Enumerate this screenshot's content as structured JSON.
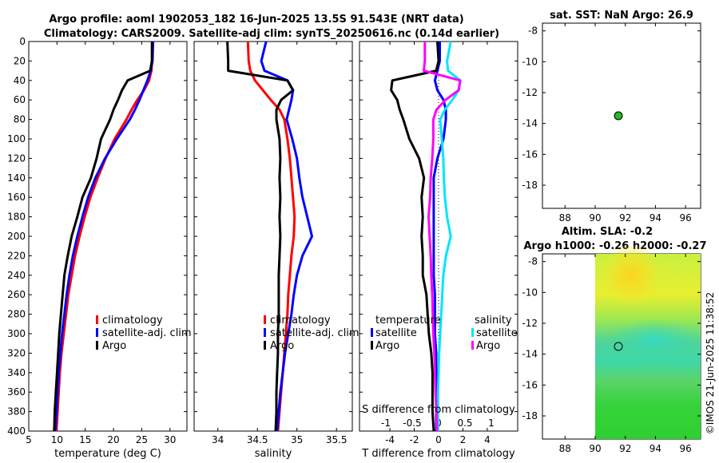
{
  "header": {
    "title_line1": "Argo profile: aoml 1902053_182 16-Jun-2025 13.5S 91.543E (NRT data)",
    "title_line2": "Climatology: CARS2009. Satellite-adj clim: synTS_20250616.nc (0.14d earlier)"
  },
  "colors": {
    "climatology": "#ff0000",
    "satellite": "#0000ff",
    "argo": "#000000",
    "sat_salinity": "#00e5ff",
    "argo_salinity": "#ff00ff",
    "float_marker": "#22bb22"
  },
  "stamp": "©IMOS 21-Jun-2025 11:38:52",
  "chart_data": [
    {
      "id": "temperature",
      "type": "line",
      "xlabel": "temperature (deg C)",
      "ylabel": "",
      "xlim": [
        5,
        33
      ],
      "ylim": [
        400,
        0
      ],
      "x_ticks": [
        5,
        10,
        15,
        20,
        25,
        30
      ],
      "y_ticks": [
        0,
        20,
        40,
        60,
        80,
        100,
        120,
        140,
        160,
        180,
        200,
        220,
        240,
        260,
        280,
        300,
        320,
        340,
        360,
        380,
        400
      ],
      "legend": [
        "climatology",
        "satellite-adj. clim",
        "Argo"
      ],
      "depth": [
        0,
        20,
        30,
        40,
        50,
        60,
        70,
        80,
        100,
        120,
        140,
        160,
        180,
        200,
        220,
        240,
        260,
        280,
        300,
        320,
        340,
        360,
        380,
        400
      ],
      "series": [
        {
          "name": "climatology",
          "values": [
            26.9,
            26.8,
            26.7,
            26.3,
            25.4,
            24.2,
            23.2,
            22.3,
            20.2,
            18.6,
            17.2,
            15.9,
            14.9,
            14.0,
            13.2,
            12.6,
            12.0,
            11.6,
            11.2,
            10.8,
            10.5,
            10.3,
            10.1,
            9.9
          ]
        },
        {
          "name": "satellite-adj. clim",
          "values": [
            27.0,
            26.9,
            26.6,
            26.0,
            25.3,
            24.6,
            23.8,
            22.9,
            20.6,
            18.5,
            16.8,
            15.5,
            14.5,
            13.6,
            12.8,
            12.2,
            11.7,
            11.3,
            10.9,
            10.6,
            10.3,
            10.1,
            9.9,
            9.7
          ]
        },
        {
          "name": "Argo",
          "values": [
            26.8,
            26.8,
            26.5,
            22.5,
            21.5,
            20.8,
            20.0,
            19.4,
            17.8,
            17.0,
            16.0,
            14.5,
            13.6,
            12.6,
            11.9,
            11.3,
            11.0,
            10.7,
            10.4,
            10.2,
            10.0,
            9.8,
            9.6,
            9.5
          ]
        }
      ]
    },
    {
      "id": "salinity",
      "type": "line",
      "xlabel": "salinity",
      "ylabel": "",
      "xlim": [
        33.7,
        35.7
      ],
      "ylim": [
        400,
        0
      ],
      "x_ticks": [
        34,
        34.5,
        35,
        35.5
      ],
      "legend": [
        "climatology",
        "satellite-adj. clim",
        "Argo"
      ],
      "depth": [
        0,
        20,
        30,
        40,
        50,
        60,
        70,
        80,
        100,
        120,
        140,
        160,
        180,
        200,
        220,
        240,
        260,
        280,
        300,
        320,
        340,
        360,
        380,
        400
      ],
      "series": [
        {
          "name": "climatology",
          "values": [
            34.38,
            34.39,
            34.41,
            34.47,
            34.57,
            34.67,
            34.78,
            34.84,
            34.88,
            34.91,
            34.93,
            34.95,
            34.97,
            34.96,
            34.93,
            34.91,
            34.89,
            34.88,
            34.86,
            34.84,
            34.82,
            34.8,
            34.78,
            34.76
          ]
        },
        {
          "name": "satellite-adj. clim",
          "values": [
            34.61,
            34.55,
            34.59,
            34.88,
            34.95,
            34.93,
            34.9,
            34.87,
            34.94,
            35.0,
            35.03,
            35.07,
            35.13,
            35.19,
            35.07,
            35.0,
            34.96,
            34.93,
            34.89,
            34.85,
            34.82,
            34.79,
            34.77,
            34.75
          ]
        },
        {
          "name": "Argo",
          "values": [
            34.12,
            34.13,
            34.13,
            34.88,
            34.95,
            34.8,
            34.74,
            34.74,
            34.78,
            34.79,
            34.78,
            34.79,
            34.78,
            34.79,
            34.78,
            34.77,
            34.77,
            34.77,
            34.76,
            34.76,
            34.75,
            34.74,
            34.74,
            34.73
          ]
        }
      ]
    },
    {
      "id": "differences",
      "type": "line",
      "xlabel": "T difference from climatology",
      "xlabel_top": "S difference from climatology",
      "xlim": [
        -6.5,
        6.5
      ],
      "ylim": [
        400,
        0
      ],
      "x_ticks": [
        -4,
        -2,
        0,
        2,
        4
      ],
      "s_ticks": [
        -1,
        -0.5,
        0,
        0.5,
        1
      ],
      "legend_titles": [
        "temperature",
        "salinity"
      ],
      "legend": [
        "satellite",
        "Argo",
        "satellite",
        "Argo"
      ],
      "depth": [
        0,
        20,
        30,
        40,
        50,
        60,
        70,
        80,
        100,
        120,
        140,
        160,
        180,
        200,
        220,
        240,
        260,
        280,
        300,
        320,
        340,
        360,
        380,
        400
      ],
      "series": [
        {
          "name": "temperature satellite",
          "values": [
            0.1,
            0.1,
            -0.1,
            -0.3,
            -0.1,
            0.4,
            0.6,
            0.6,
            0.4,
            -0.1,
            -0.4,
            -0.4,
            -0.4,
            -0.4,
            -0.4,
            -0.4,
            -0.3,
            -0.3,
            -0.3,
            -0.2,
            -0.2,
            -0.2,
            -0.2,
            -0.2
          ]
        },
        {
          "name": "temperature Argo",
          "values": [
            -0.1,
            0.0,
            -0.2,
            -3.8,
            -3.9,
            -3.4,
            -3.2,
            -2.9,
            -2.4,
            -1.6,
            -1.2,
            -1.4,
            -1.3,
            -1.4,
            -1.3,
            -1.3,
            -1.0,
            -0.9,
            -0.8,
            -0.6,
            -0.5,
            -0.5,
            -0.5,
            -0.4
          ]
        },
        {
          "name": "salinity satellite",
          "values": [
            0.23,
            0.16,
            0.18,
            0.41,
            0.38,
            0.26,
            0.12,
            0.03,
            0.06,
            0.09,
            0.1,
            0.12,
            0.16,
            0.23,
            0.14,
            0.09,
            0.07,
            0.05,
            0.03,
            0.01,
            0.0,
            -0.01,
            -0.01,
            -0.01
          ]
        },
        {
          "name": "salinity Argo",
          "values": [
            -0.26,
            -0.26,
            -0.28,
            0.41,
            0.38,
            0.13,
            -0.04,
            -0.1,
            -0.1,
            -0.12,
            -0.15,
            -0.16,
            -0.19,
            -0.17,
            -0.15,
            -0.14,
            -0.12,
            -0.11,
            -0.1,
            -0.08,
            -0.07,
            -0.06,
            -0.04,
            -0.03
          ]
        }
      ]
    },
    {
      "id": "sst-map",
      "type": "scatter",
      "title": "sat. SST: NaN Argo: 26.9",
      "xlim": [
        86.5,
        97
      ],
      "ylim": [
        -19.5,
        -7.5
      ],
      "x_ticks": [
        88,
        90,
        92,
        94,
        96
      ],
      "y_ticks": [
        -8,
        -10,
        -12,
        -14,
        -16,
        -18
      ],
      "point": {
        "lon": 91.54,
        "lat": -13.5
      }
    },
    {
      "id": "sla-map",
      "type": "heatmap",
      "title_line1": "Altim. SLA: -0.2",
      "title_line2": "Argo h1000: -0.26 h2000: -0.27",
      "xlim": [
        86.5,
        97
      ],
      "ylim": [
        -19.5,
        -7.5
      ],
      "x_ticks": [
        88,
        90,
        92,
        94,
        96
      ],
      "y_ticks": [
        -8,
        -10,
        -12,
        -14,
        -16,
        -18
      ],
      "data_lon_range": [
        90,
        97
      ],
      "point": {
        "lon": 91.54,
        "lat": -13.5
      }
    }
  ]
}
